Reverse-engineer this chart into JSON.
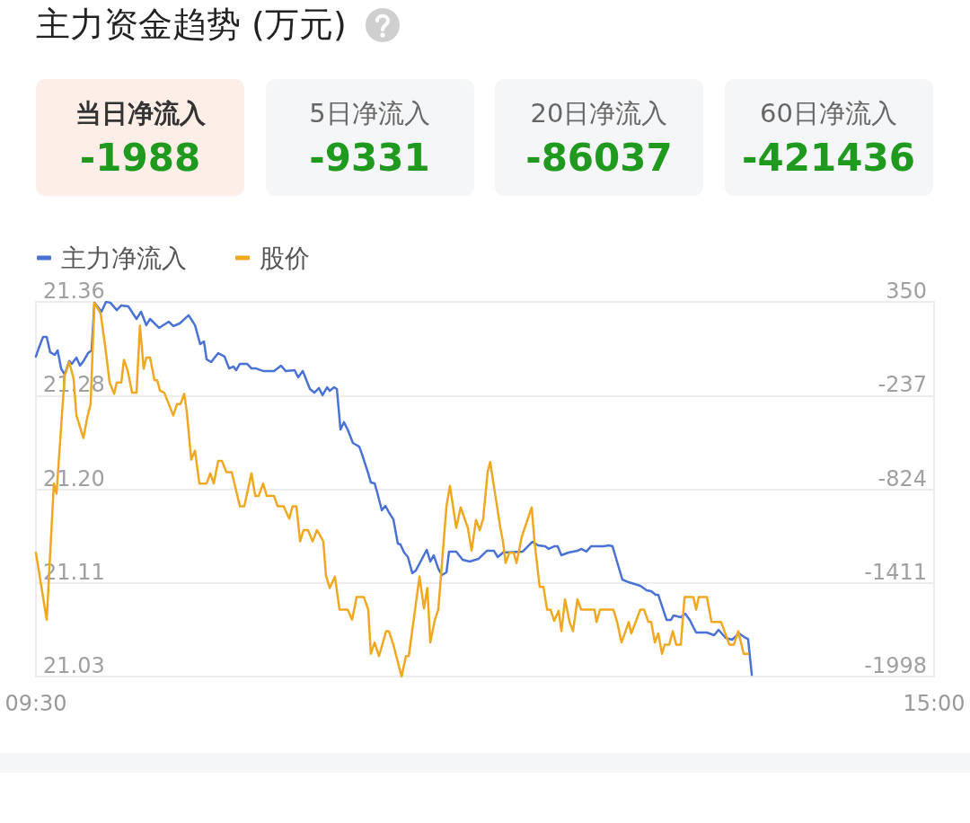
{
  "chart_data": {
    "type": "line",
    "title": "主力资金趋势 (万元)",
    "annotations": [
      "当日净流入",
      "-1988",
      "5日净流入",
      "-9331",
      "20日净流入",
      "-86037",
      "60日净流入",
      "-421436"
    ],
    "xlim": [
      9.5,
      15
    ],
    "xticks": [
      {
        "value": 9.5,
        "label": "09:30"
      },
      {
        "value": 15,
        "label": "15:00"
      }
    ],
    "ylim": [
      21.03,
      21.36
    ],
    "yticks": [
      {
        "value": 21.03,
        "label": "21.03"
      },
      {
        "value": 21.1125,
        "label": "21.11"
      },
      {
        "value": 21.195,
        "label": "21.20"
      },
      {
        "value": 21.2775,
        "label": "21.28"
      },
      {
        "value": 21.36,
        "label": "21.36"
      }
    ],
    "y2lim": [
      -1998,
      350
    ],
    "y2ticks": [
      -1998,
      -1411,
      -824,
      -237,
      350
    ],
    "grid": "y",
    "legend": "top left",
    "marker": "none",
    "line_style": "solid",
    "series": [
      {
        "name": "主力净流入",
        "color": "#4a72d4",
        "axis": "y2",
        "x": [
          9.5,
          9.516,
          9.544,
          9.566,
          9.587,
          9.615,
          9.633,
          9.654,
          9.676,
          9.704,
          9.72,
          9.748,
          9.77,
          9.791,
          9.819,
          9.841,
          9.858,
          9.901,
          9.929,
          9.956,
          9.995,
          10.023,
          10.066,
          10.116,
          10.144,
          10.176,
          10.199,
          10.254,
          10.314,
          10.341,
          10.38,
          10.435,
          10.474,
          10.506,
          10.529,
          10.545,
          10.573,
          10.616,
          10.655,
          10.683,
          10.71,
          10.726,
          10.749,
          10.793,
          10.82,
          10.848,
          10.891,
          10.958,
          11.001,
          11.029,
          11.084,
          11.106,
          11.134,
          11.178,
          11.205,
          11.233,
          11.255,
          11.283,
          11.299,
          11.326,
          11.343,
          11.365,
          11.386,
          11.409,
          11.441,
          11.48,
          11.496,
          11.535,
          11.551,
          11.574,
          11.59,
          11.618,
          11.64,
          11.661,
          11.689,
          11.716,
          11.732,
          11.755,
          11.778,
          11.805,
          11.826,
          11.893,
          11.915,
          11.936,
          11.964,
          11.986,
          12.014,
          12.03,
          12.074,
          12.113,
          12.156,
          12.211,
          12.261,
          12.305,
          12.328,
          12.36,
          12.481,
          12.541,
          12.575,
          12.619,
          12.64,
          12.674,
          12.695,
          12.718,
          12.761,
          12.816,
          12.839,
          12.871,
          12.899,
          12.976,
          13.009,
          13.031,
          13.091,
          13.13,
          13.201,
          13.24,
          13.268,
          13.295,
          13.311,
          13.362,
          13.389,
          13.405,
          13.449,
          13.476,
          13.504,
          13.543,
          13.609,
          13.653,
          13.68,
          13.724,
          13.763,
          13.806,
          13.845,
          13.861,
          13.884
        ],
        "values": [
          7,
          57,
          131,
          131,
          35,
          18,
          46,
          -67,
          -106,
          -21,
          -38,
          1,
          -50,
          -21,
          29,
          46,
          345,
          288,
          350,
          345,
          299,
          328,
          322,
          243,
          288,
          204,
          243,
          187,
          226,
          198,
          215,
          266,
          204,
          85,
          102,
          -10,
          -27,
          29,
          7,
          -67,
          -55,
          -78,
          -38,
          -38,
          -67,
          -67,
          -83,
          -83,
          -50,
          -83,
          -78,
          -123,
          -83,
          -196,
          -219,
          -190,
          -235,
          -185,
          -207,
          -185,
          -196,
          -450,
          -404,
          -450,
          -534,
          -557,
          -602,
          -725,
          -782,
          -787,
          -844,
          -956,
          -928,
          -968,
          -1013,
          -1165,
          -1170,
          -1221,
          -1249,
          -1350,
          -1334,
          -1204,
          -1277,
          -1238,
          -1322,
          -1362,
          -1345,
          -1215,
          -1215,
          -1266,
          -1277,
          -1260,
          -1210,
          -1210,
          -1249,
          -1221,
          -1215,
          -1153,
          -1176,
          -1182,
          -1198,
          -1182,
          -1182,
          -1238,
          -1221,
          -1210,
          -1198,
          -1215,
          -1182,
          -1182,
          -1176,
          -1182,
          -1390,
          -1407,
          -1429,
          -1457,
          -1463,
          -1486,
          -1486,
          -1643,
          -1643,
          -1615,
          -1626,
          -1604,
          -1643,
          -1722,
          -1722,
          -1739,
          -1705,
          -1756,
          -1767,
          -1728,
          -1756,
          -1762,
          -1988
        ]
      },
      {
        "name": "股价",
        "color": "#f0a820",
        "x": [
          9.5,
          9.566,
          9.61,
          9.626,
          9.676,
          9.704,
          9.731,
          9.748,
          9.791,
          9.814,
          9.835,
          9.858,
          9.896,
          9.924,
          9.951,
          9.979,
          9.995,
          10.023,
          10.039,
          10.061,
          10.089,
          10.116,
          10.137,
          10.16,
          10.176,
          10.199,
          10.226,
          10.243,
          10.259,
          10.286,
          10.341,
          10.364,
          10.385,
          10.408,
          10.424,
          10.451,
          10.474,
          10.501,
          10.545,
          10.568,
          10.589,
          10.616,
          10.639,
          10.666,
          10.699,
          10.749,
          10.776,
          10.82,
          10.843,
          10.864,
          10.891,
          10.914,
          10.958,
          10.98,
          11.017,
          11.051,
          11.072,
          11.095,
          11.118,
          11.139,
          11.166,
          11.194,
          11.221,
          11.26,
          11.276,
          11.299,
          11.331,
          11.359,
          11.409,
          11.436,
          11.464,
          11.508,
          11.535,
          11.551,
          11.574,
          11.601,
          11.645,
          11.661,
          11.689,
          11.739,
          11.766,
          11.783,
          11.849,
          11.876,
          11.897,
          11.915,
          11.943,
          11.964,
          12.014,
          12.035,
          12.074,
          12.101,
          12.145,
          12.168,
          12.195,
          12.218,
          12.239,
          12.266,
          12.282,
          12.316,
          12.344,
          12.36,
          12.376,
          12.399,
          12.426,
          12.443,
          12.475,
          12.536,
          12.553,
          12.585,
          12.608,
          12.63,
          12.651,
          12.674,
          12.701,
          12.718,
          12.74,
          12.768,
          12.789,
          12.816,
          12.839,
          12.921,
          12.933,
          12.954,
          13.036,
          13.059,
          13.086,
          13.13,
          13.146,
          13.201,
          13.224,
          13.251,
          13.268,
          13.29,
          13.311,
          13.334,
          13.35,
          13.378,
          13.4,
          13.421,
          13.449,
          13.472,
          13.526,
          13.543,
          13.559,
          13.609,
          13.637,
          13.696,
          13.747,
          13.774,
          13.801,
          13.834,
          13.861
        ],
        "values": [
          21.139,
          21.08,
          21.2,
          21.191,
          21.295,
          21.307,
          21.292,
          21.26,
          21.24,
          21.258,
          21.27,
          21.359,
          21.35,
          21.321,
          21.289,
          21.279,
          21.289,
          21.289,
          21.309,
          21.3,
          21.28,
          21.28,
          21.339,
          21.301,
          21.311,
          21.311,
          21.291,
          21.291,
          21.282,
          21.28,
          21.26,
          21.27,
          21.27,
          21.279,
          21.263,
          21.221,
          21.229,
          21.2,
          21.2,
          21.209,
          21.2,
          21.22,
          21.22,
          21.21,
          21.21,
          21.18,
          21.18,
          21.209,
          21.189,
          21.189,
          21.2,
          21.189,
          21.189,
          21.18,
          21.18,
          21.169,
          21.18,
          21.18,
          21.149,
          21.159,
          21.159,
          21.149,
          21.159,
          21.149,
          21.119,
          21.108,
          21.118,
          21.089,
          21.089,
          21.08,
          21.1,
          21.1,
          21.089,
          21.05,
          21.06,
          21.048,
          21.07,
          21.07,
          21.058,
          21.03,
          21.048,
          21.048,
          21.118,
          21.09,
          21.108,
          21.06,
          21.08,
          21.089,
          21.18,
          21.198,
          21.161,
          21.179,
          21.161,
          21.141,
          21.168,
          21.159,
          21.169,
          21.21,
          21.219,
          21.187,
          21.161,
          21.149,
          21.13,
          21.139,
          21.139,
          21.13,
          21.153,
          21.179,
          21.149,
          21.109,
          21.109,
          21.089,
          21.089,
          21.079,
          21.088,
          21.07,
          21.098,
          21.078,
          21.07,
          21.098,
          21.089,
          21.089,
          21.078,
          21.089,
          21.089,
          21.078,
          21.06,
          21.078,
          21.068,
          21.089,
          21.089,
          21.078,
          21.078,
          21.06,
          21.068,
          21.05,
          21.058,
          21.058,
          21.07,
          21.058,
          21.058,
          21.1,
          21.1,
          21.089,
          21.1,
          21.1,
          21.078,
          21.078,
          21.058,
          21.058,
          21.07,
          21.05,
          21.05
        ]
      }
    ]
  }
}
